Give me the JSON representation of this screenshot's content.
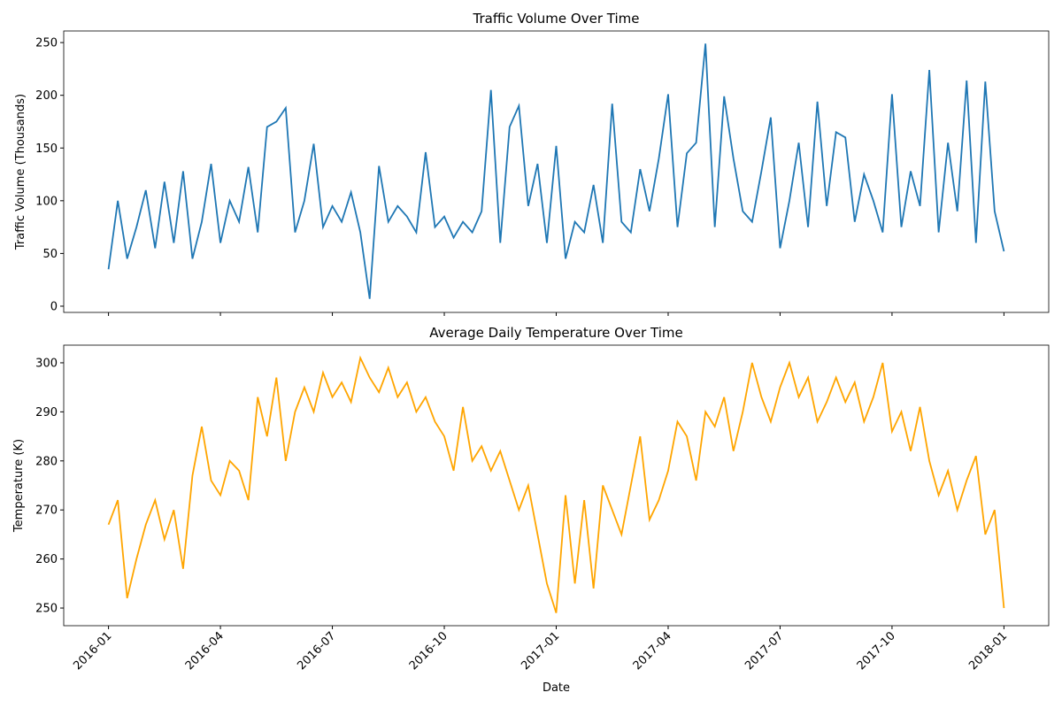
{
  "chart_data": [
    {
      "type": "line",
      "title": "Traffic Volume Over Time",
      "ylabel": "Traffic Volume (Thousands)",
      "x": [
        0,
        0.25,
        0.5,
        0.75,
        1,
        1.25,
        1.5,
        1.75,
        2,
        2.25,
        2.5,
        2.75,
        3,
        3.25,
        3.5,
        3.75,
        4,
        4.25,
        4.5,
        4.75,
        5,
        5.25,
        5.5,
        5.75,
        6,
        6.25,
        6.5,
        6.75,
        7,
        7.25,
        7.5,
        7.75,
        8,
        8.25,
        8.5,
        8.75,
        9,
        9.25,
        9.5,
        9.75,
        10,
        10.25,
        10.5,
        10.75,
        11,
        11.25,
        11.5,
        11.75,
        12,
        12.25,
        12.5,
        12.75,
        13,
        13.25,
        13.5,
        13.75,
        14,
        14.25,
        14.5,
        14.75,
        15,
        15.25,
        15.5,
        15.75,
        16,
        16.25,
        16.5,
        16.75,
        17,
        17.25,
        17.5,
        17.75,
        18,
        18.25,
        18.5,
        18.75,
        19,
        19.25,
        19.5,
        19.75,
        20,
        20.25,
        20.5,
        20.75,
        21,
        21.25,
        21.5,
        21.75,
        22,
        22.25,
        22.5,
        22.75,
        23,
        23.25,
        23.5,
        23.75,
        24
      ],
      "series": [
        {
          "color": "#1f77b4",
          "values": [
            35,
            100,
            45,
            75,
            110,
            55,
            118,
            60,
            128,
            45,
            80,
            135,
            60,
            100,
            80,
            132,
            70,
            170,
            175,
            188,
            70,
            100,
            154,
            75,
            95,
            80,
            108,
            70,
            7,
            133,
            80,
            95,
            85,
            70,
            146,
            75,
            85,
            65,
            80,
            70,
            90,
            205,
            60,
            170,
            190,
            95,
            135,
            60,
            152,
            45,
            80,
            70,
            115,
            60,
            192,
            80,
            70,
            130,
            90,
            140,
            201,
            75,
            145,
            155,
            249,
            75,
            199,
            140,
            90,
            80,
            128,
            179,
            55,
            100,
            155,
            75,
            194,
            95,
            165,
            160,
            80,
            125,
            100,
            70,
            201,
            75,
            128,
            95,
            224,
            70,
            155,
            90,
            214,
            60,
            213,
            90,
            52
          ]
        }
      ],
      "xlim": [
        -1.2,
        25.2
      ],
      "xticks": [
        0,
        3,
        6,
        9,
        12,
        15,
        18,
        21,
        24
      ],
      "ylim": [
        -5.9,
        261
      ],
      "yticks": [
        0,
        50,
        100,
        150,
        200,
        250
      ]
    },
    {
      "type": "line",
      "title": "Average Daily Temperature Over Time",
      "ylabel": "Temperature (K)",
      "xlabel": "Date",
      "x": [
        0,
        0.25,
        0.5,
        0.75,
        1,
        1.25,
        1.5,
        1.75,
        2,
        2.25,
        2.5,
        2.75,
        3,
        3.25,
        3.5,
        3.75,
        4,
        4.25,
        4.5,
        4.75,
        5,
        5.25,
        5.5,
        5.75,
        6,
        6.25,
        6.5,
        6.75,
        7,
        7.25,
        7.5,
        7.75,
        8,
        8.25,
        8.5,
        8.75,
        9,
        9.25,
        9.5,
        9.75,
        10,
        10.25,
        10.5,
        10.75,
        11,
        11.25,
        11.5,
        11.75,
        12,
        12.25,
        12.5,
        12.75,
        13,
        13.25,
        13.5,
        13.75,
        14,
        14.25,
        14.5,
        14.75,
        15,
        15.25,
        15.5,
        15.75,
        16,
        16.25,
        16.5,
        16.75,
        17,
        17.25,
        17.5,
        17.75,
        18,
        18.25,
        18.5,
        18.75,
        19,
        19.25,
        19.5,
        19.75,
        20,
        20.25,
        20.5,
        20.75,
        21,
        21.25,
        21.5,
        21.75,
        22,
        22.25,
        22.5,
        22.75,
        23,
        23.25,
        23.5,
        23.75,
        24
      ],
      "series": [
        {
          "color": "#ffa500",
          "values": [
            267,
            272,
            252,
            260,
            267,
            272,
            264,
            270,
            258,
            277,
            287,
            276,
            273,
            280,
            278,
            272,
            293,
            285,
            297,
            280,
            290,
            295,
            290,
            298,
            293,
            296,
            292,
            301,
            297,
            294,
            299,
            293,
            296,
            290,
            293,
            288,
            285,
            278,
            291,
            280,
            283,
            278,
            282,
            276,
            270,
            275,
            265,
            255,
            249,
            273,
            255,
            272,
            254,
            275,
            270,
            265,
            275,
            285,
            268,
            272,
            278,
            288,
            285,
            276,
            290,
            287,
            293,
            282,
            290,
            300,
            293,
            288,
            295,
            300,
            293,
            297,
            288,
            292,
            297,
            292,
            296,
            288,
            293,
            300,
            286,
            290,
            282,
            291,
            280,
            273,
            278,
            270,
            276,
            281,
            265,
            270,
            250
          ]
        }
      ],
      "xlim": [
        -1.2,
        25.2
      ],
      "xticks": [
        {
          "value": 0,
          "label": "2016-01"
        },
        {
          "value": 3,
          "label": "2016-04"
        },
        {
          "value": 6,
          "label": "2016-07"
        },
        {
          "value": 9,
          "label": "2016-10"
        },
        {
          "value": 12,
          "label": "2017-01"
        },
        {
          "value": 15,
          "label": "2017-04"
        },
        {
          "value": 18,
          "label": "2017-07"
        },
        {
          "value": 21,
          "label": "2017-10"
        },
        {
          "value": 24,
          "label": "2018-01"
        }
      ],
      "ylim": [
        246.4,
        303.6
      ],
      "yticks": [
        250,
        260,
        270,
        280,
        290,
        300
      ]
    }
  ]
}
